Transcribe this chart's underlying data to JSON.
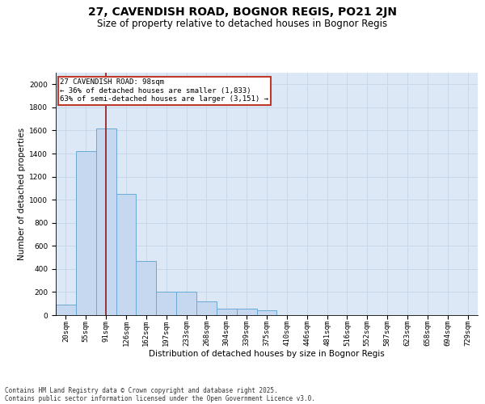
{
  "title1": "27, CAVENDISH ROAD, BOGNOR REGIS, PO21 2JN",
  "title2": "Size of property relative to detached houses in Bognor Regis",
  "xlabel": "Distribution of detached houses by size in Bognor Regis",
  "ylabel": "Number of detached properties",
  "categories": [
    "20sqm",
    "55sqm",
    "91sqm",
    "126sqm",
    "162sqm",
    "197sqm",
    "233sqm",
    "268sqm",
    "304sqm",
    "339sqm",
    "375sqm",
    "410sqm",
    "446sqm",
    "481sqm",
    "516sqm",
    "552sqm",
    "587sqm",
    "623sqm",
    "658sqm",
    "694sqm",
    "729sqm"
  ],
  "values": [
    90,
    1420,
    1620,
    1050,
    470,
    200,
    200,
    120,
    55,
    55,
    45,
    0,
    0,
    0,
    0,
    0,
    0,
    0,
    0,
    0,
    0
  ],
  "bar_color": "#c5d8ef",
  "bar_edge_color": "#6aaad4",
  "grid_color": "#c8d8eb",
  "background_color": "#dce8f5",
  "vline_x": 2.0,
  "vline_color": "#8b1a1a",
  "annotation_text": "27 CAVENDISH ROAD: 98sqm\n← 36% of detached houses are smaller (1,833)\n63% of semi-detached houses are larger (3,151) →",
  "annotation_box_color": "#c0392b",
  "ylim": [
    0,
    2100
  ],
  "yticks": [
    0,
    200,
    400,
    600,
    800,
    1000,
    1200,
    1400,
    1600,
    1800,
    2000
  ],
  "footer_line1": "Contains HM Land Registry data © Crown copyright and database right 2025.",
  "footer_line2": "Contains public sector information licensed under the Open Government Licence v3.0.",
  "title_fontsize": 10,
  "subtitle_fontsize": 8.5,
  "axis_label_fontsize": 7.5,
  "tick_fontsize": 6.5,
  "annotation_fontsize": 6.5,
  "footer_fontsize": 5.5
}
